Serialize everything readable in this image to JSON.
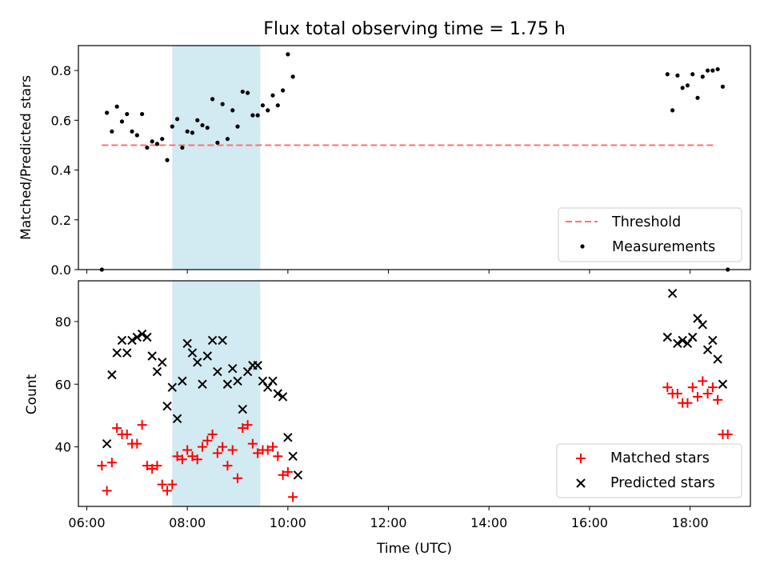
{
  "chart_data": [
    {
      "type": "scatter",
      "title": "Flux total observing time = 1.75 h",
      "xlabel": "",
      "ylabel": "Matched/Predicted stars",
      "x_unit": "hours UTC",
      "xlim": [
        "05:50",
        "19:12"
      ],
      "ylim": [
        0.0,
        0.9
      ],
      "y_ticks": [
        "0.0",
        "0.2",
        "0.4",
        "0.6",
        "0.8"
      ],
      "grid": false,
      "legend_position": "lower right",
      "highlight_band": {
        "x": [
          "07:42",
          "09:27"
        ],
        "color": "#add8e6"
      },
      "threshold": {
        "name": "Threshold",
        "y": 0.5,
        "x": [
          "06:18",
          "18:30"
        ],
        "color": "#ff7070",
        "style": "dashed"
      },
      "series": [
        {
          "name": "Measurements",
          "color": "#000000",
          "marker": "dot",
          "points": [
            [
              "06:18",
              0.0
            ],
            [
              "06:24",
              0.63
            ],
            [
              "06:30",
              0.555
            ],
            [
              "06:36",
              0.655
            ],
            [
              "06:42",
              0.595
            ],
            [
              "06:48",
              0.625
            ],
            [
              "06:54",
              0.555
            ],
            [
              "07:00",
              0.54
            ],
            [
              "07:06",
              0.625
            ],
            [
              "07:12",
              0.49
            ],
            [
              "07:18",
              0.515
            ],
            [
              "07:24",
              0.505
            ],
            [
              "07:30",
              0.525
            ],
            [
              "07:36",
              0.44
            ],
            [
              "07:42",
              0.575
            ],
            [
              "07:48",
              0.605
            ],
            [
              "07:54",
              0.49
            ],
            [
              "08:00",
              0.555
            ],
            [
              "08:06",
              0.55
            ],
            [
              "08:12",
              0.6
            ],
            [
              "08:18",
              0.58
            ],
            [
              "08:24",
              0.57
            ],
            [
              "08:30",
              0.685
            ],
            [
              "08:36",
              0.51
            ],
            [
              "08:42",
              0.665
            ],
            [
              "08:48",
              0.525
            ],
            [
              "08:54",
              0.64
            ],
            [
              "09:00",
              0.575
            ],
            [
              "09:06",
              0.715
            ],
            [
              "09:12",
              0.71
            ],
            [
              "09:18",
              0.62
            ],
            [
              "09:24",
              0.62
            ],
            [
              "09:30",
              0.66
            ],
            [
              "09:36",
              0.64
            ],
            [
              "09:42",
              0.7
            ],
            [
              "09:48",
              0.66
            ],
            [
              "09:54",
              0.72
            ],
            [
              "10:00",
              0.865
            ],
            [
              "10:06",
              0.775
            ],
            [
              "17:33",
              0.785
            ],
            [
              "17:39",
              0.64
            ],
            [
              "17:45",
              0.78
            ],
            [
              "17:51",
              0.73
            ],
            [
              "17:57",
              0.74
            ],
            [
              "18:03",
              0.785
            ],
            [
              "18:09",
              0.69
            ],
            [
              "18:15",
              0.775
            ],
            [
              "18:21",
              0.8
            ],
            [
              "18:27",
              0.8
            ],
            [
              "18:33",
              0.805
            ],
            [
              "18:39",
              0.735
            ],
            [
              "18:45",
              0.0
            ]
          ]
        }
      ]
    },
    {
      "type": "scatter",
      "title": "",
      "xlabel": "Time (UTC)",
      "ylabel": "Count",
      "x_unit": "hours UTC",
      "xlim": [
        "05:50",
        "19:12"
      ],
      "ylim": [
        21,
        93
      ],
      "x_ticks": [
        "06:00",
        "08:00",
        "10:00",
        "12:00",
        "14:00",
        "16:00",
        "18:00"
      ],
      "y_ticks": [
        "40",
        "60",
        "80"
      ],
      "grid": false,
      "legend_position": "lower right",
      "highlight_band": {
        "x": [
          "07:42",
          "09:27"
        ],
        "color": "#add8e6"
      },
      "series": [
        {
          "name": "Matched stars",
          "color": "#ff0000",
          "marker": "plus",
          "points": [
            [
              "06:18",
              34
            ],
            [
              "06:24",
              26
            ],
            [
              "06:30",
              35
            ],
            [
              "06:36",
              46
            ],
            [
              "06:42",
              44
            ],
            [
              "06:48",
              44
            ],
            [
              "06:54",
              41
            ],
            [
              "07:00",
              41
            ],
            [
              "07:06",
              47
            ],
            [
              "07:12",
              34
            ],
            [
              "07:18",
              33
            ],
            [
              "07:24",
              34
            ],
            [
              "07:30",
              28
            ],
            [
              "07:36",
              26
            ],
            [
              "07:42",
              28
            ],
            [
              "07:48",
              37
            ],
            [
              "07:54",
              36
            ],
            [
              "08:00",
              39
            ],
            [
              "08:06",
              37
            ],
            [
              "08:12",
              36
            ],
            [
              "08:18",
              40
            ],
            [
              "08:24",
              42
            ],
            [
              "08:30",
              44
            ],
            [
              "08:36",
              38
            ],
            [
              "08:42",
              40
            ],
            [
              "08:48",
              34
            ],
            [
              "08:54",
              39
            ],
            [
              "09:00",
              30
            ],
            [
              "09:06",
              46
            ],
            [
              "09:12",
              47
            ],
            [
              "09:18",
              41
            ],
            [
              "09:24",
              38
            ],
            [
              "09:30",
              39
            ],
            [
              "09:36",
              39
            ],
            [
              "09:42",
              40
            ],
            [
              "09:48",
              37
            ],
            [
              "09:54",
              31
            ],
            [
              "10:00",
              32
            ],
            [
              "10:06",
              24
            ],
            [
              "17:33",
              59
            ],
            [
              "17:39",
              57
            ],
            [
              "17:45",
              57
            ],
            [
              "17:51",
              54
            ],
            [
              "17:57",
              54
            ],
            [
              "18:03",
              59
            ],
            [
              "18:09",
              56
            ],
            [
              "18:15",
              61
            ],
            [
              "18:21",
              57
            ],
            [
              "18:27",
              59
            ],
            [
              "18:33",
              55
            ],
            [
              "18:39",
              44
            ],
            [
              "18:45",
              44
            ]
          ]
        },
        {
          "name": "Predicted stars",
          "color": "#000000",
          "marker": "x",
          "points": [
            [
              "06:24",
              41
            ],
            [
              "06:30",
              63
            ],
            [
              "06:36",
              70
            ],
            [
              "06:42",
              74
            ],
            [
              "06:48",
              70
            ],
            [
              "06:54",
              74
            ],
            [
              "07:00",
              75
            ],
            [
              "07:06",
              76
            ],
            [
              "07:12",
              75
            ],
            [
              "07:18",
              69
            ],
            [
              "07:24",
              64
            ],
            [
              "07:30",
              67
            ],
            [
              "07:36",
              53
            ],
            [
              "07:42",
              59
            ],
            [
              "07:48",
              49
            ],
            [
              "07:54",
              61
            ],
            [
              "08:00",
              73
            ],
            [
              "08:06",
              70
            ],
            [
              "08:12",
              67
            ],
            [
              "08:18",
              60
            ],
            [
              "08:24",
              69
            ],
            [
              "08:30",
              74
            ],
            [
              "08:36",
              64
            ],
            [
              "08:42",
              74
            ],
            [
              "08:48",
              60
            ],
            [
              "08:54",
              65
            ],
            [
              "09:00",
              61
            ],
            [
              "09:06",
              52
            ],
            [
              "09:12",
              64
            ],
            [
              "09:18",
              66
            ],
            [
              "09:24",
              66
            ],
            [
              "09:30",
              61
            ],
            [
              "09:36",
              59
            ],
            [
              "09:42",
              61
            ],
            [
              "09:48",
              57
            ],
            [
              "09:54",
              56
            ],
            [
              "10:00",
              43
            ],
            [
              "10:06",
              37
            ],
            [
              "10:12",
              31
            ],
            [
              "17:33",
              75
            ],
            [
              "17:39",
              89
            ],
            [
              "17:45",
              73
            ],
            [
              "17:51",
              74
            ],
            [
              "17:57",
              73
            ],
            [
              "18:03",
              75
            ],
            [
              "18:09",
              81
            ],
            [
              "18:15",
              79
            ],
            [
              "18:21",
              71
            ],
            [
              "18:27",
              74
            ],
            [
              "18:33",
              68
            ],
            [
              "18:39",
              60
            ]
          ]
        }
      ]
    }
  ]
}
